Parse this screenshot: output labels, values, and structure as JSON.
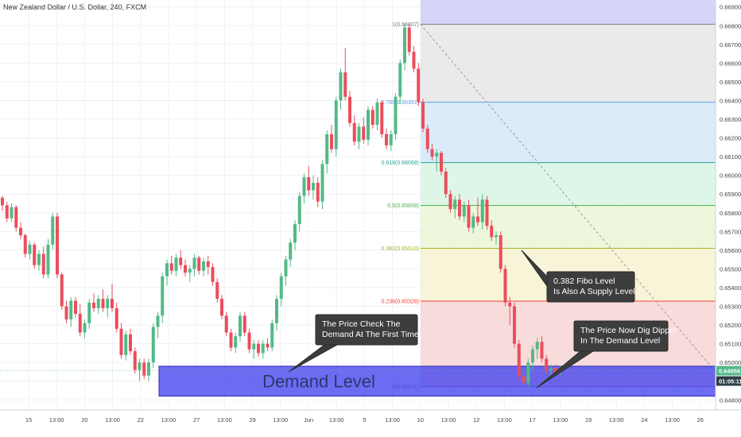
{
  "symbol_title": "New Zealand Dollar / U.S. Dollar, 240, FXCM",
  "colors": {
    "up": "#53b987",
    "down": "#eb4d5c",
    "grid": "#eef1f5",
    "demand_zone": "#4343f0",
    "fib_band_top": "#d3d3f7",
    "fib_band_grey": "#e8e8e8",
    "fib_band_blue": "#d6e9f8",
    "fib_band_green": "#d9f5e5",
    "fib_band_lime": "#eaf6d8",
    "fib_band_yellow": "#f7f3d3",
    "fib_band_red": "#f7d7d7",
    "current_price_tag": "#53b987",
    "countdown_tag": "#2f3d46"
  },
  "chart_data": {
    "type": "candlestick",
    "timeframe": "240",
    "x_ticks": [
      "15",
      "13:00",
      "20",
      "13:00",
      "22",
      "13:00",
      "27",
      "13:00",
      "29",
      "13:00",
      "Jun",
      "13:00",
      "5",
      "13:00",
      "10",
      "13:00",
      "12",
      "13:00",
      "17",
      "13:00",
      "19",
      "13:00",
      "24",
      "13:00",
      "26"
    ],
    "y_ticks": [
      "0.66900",
      "0.66800",
      "0.66700",
      "0.66600",
      "0.66500",
      "0.66400",
      "0.66300",
      "0.66200",
      "0.66100",
      "0.66000",
      "0.65900",
      "0.65800",
      "0.65700",
      "0.65600",
      "0.65500",
      "0.65400",
      "0.65300",
      "0.65200",
      "0.65100",
      "0.65000",
      "0.64900",
      "0.64800"
    ],
    "ylim": [
      0.6478,
      0.6692
    ],
    "current_price": "0.64956",
    "countdown": "01:05:11",
    "fib_levels": [
      {
        "label": "1(0.66807)",
        "value": 0.66807,
        "color": "#787b86"
      },
      {
        "label": "0.786(0.66391)",
        "value": 0.66391,
        "color": "#5b9cf6"
      },
      {
        "label": "0.618(0.66068)",
        "value": 0.66068,
        "color": "#26a69a"
      },
      {
        "label": "0.5(0.65839)",
        "value": 0.65839,
        "color": "#4caf50"
      },
      {
        "label": "0.382(0.65610)",
        "value": 0.6561,
        "color": "#9cb82b"
      },
      {
        "label": "0.236(0.65328)",
        "value": 0.65328,
        "color": "#f44336"
      },
      {
        "label": "0(0.64871)",
        "value": 0.64871,
        "color": "#787b86"
      }
    ],
    "demand_zone": {
      "label": "Demand Level",
      "top": 0.6498,
      "bottom": 0.6482
    },
    "callouts": [
      {
        "lines": [
          "The Price Check The",
          "Demand At The First Time"
        ]
      },
      {
        "lines": [
          "0.382 Fibo Level",
          "Is Also A Supply Level"
        ]
      },
      {
        "lines": [
          "The Price Now Dig Dipper",
          "In The Demand Level"
        ]
      }
    ],
    "candles": [
      [
        0.6588,
        0.6589,
        0.6581,
        0.6584
      ],
      [
        0.6584,
        0.6586,
        0.6575,
        0.6577
      ],
      [
        0.6577,
        0.6585,
        0.6575,
        0.6583
      ],
      [
        0.6583,
        0.6584,
        0.657,
        0.6572
      ],
      [
        0.6572,
        0.6575,
        0.6566,
        0.6568
      ],
      [
        0.6568,
        0.6569,
        0.6556,
        0.6558
      ],
      [
        0.6558,
        0.6565,
        0.6555,
        0.6563
      ],
      [
        0.6563,
        0.6564,
        0.655,
        0.6552
      ],
      [
        0.6552,
        0.656,
        0.6549,
        0.6558
      ],
      [
        0.6558,
        0.6562,
        0.6545,
        0.6547
      ],
      [
        0.6547,
        0.6566,
        0.6545,
        0.6563
      ],
      [
        0.6563,
        0.658,
        0.656,
        0.6578
      ],
      [
        0.6578,
        0.658,
        0.6545,
        0.6547
      ],
      [
        0.6547,
        0.6548,
        0.6528,
        0.653
      ],
      [
        0.653,
        0.6533,
        0.6521,
        0.6523
      ],
      [
        0.6523,
        0.6535,
        0.6519,
        0.6533
      ],
      [
        0.6533,
        0.6535,
        0.6524,
        0.6526
      ],
      [
        0.6526,
        0.6531,
        0.6514,
        0.6516
      ],
      [
        0.6516,
        0.6523,
        0.6513,
        0.6521
      ],
      [
        0.6521,
        0.6534,
        0.6518,
        0.6532
      ],
      [
        0.6532,
        0.6537,
        0.6527,
        0.6529
      ],
      [
        0.6529,
        0.6536,
        0.6526,
        0.6534
      ],
      [
        0.6534,
        0.6539,
        0.6527,
        0.6529
      ],
      [
        0.6529,
        0.6536,
        0.6524,
        0.6534
      ],
      [
        0.6534,
        0.6542,
        0.6527,
        0.6529
      ],
      [
        0.6529,
        0.6532,
        0.6516,
        0.6518
      ],
      [
        0.6518,
        0.6521,
        0.6502,
        0.6504
      ],
      [
        0.6504,
        0.6517,
        0.6501,
        0.6515
      ],
      [
        0.6515,
        0.6518,
        0.6504,
        0.6506
      ],
      [
        0.6506,
        0.6508,
        0.6494,
        0.6496
      ],
      [
        0.6496,
        0.6502,
        0.649,
        0.65
      ],
      [
        0.65,
        0.6502,
        0.6491,
        0.6493
      ],
      [
        0.6493,
        0.6502,
        0.649,
        0.65
      ],
      [
        0.65,
        0.6521,
        0.6497,
        0.6519
      ],
      [
        0.6519,
        0.6527,
        0.6513,
        0.6525
      ],
      [
        0.6525,
        0.6548,
        0.6521,
        0.6546
      ],
      [
        0.6546,
        0.6555,
        0.6541,
        0.6553
      ],
      [
        0.6553,
        0.6557,
        0.6547,
        0.6549
      ],
      [
        0.6549,
        0.6558,
        0.6546,
        0.6556
      ],
      [
        0.6556,
        0.656,
        0.655,
        0.6552
      ],
      [
        0.6552,
        0.6555,
        0.6546,
        0.6548
      ],
      [
        0.6548,
        0.6552,
        0.6543,
        0.655
      ],
      [
        0.655,
        0.6558,
        0.6546,
        0.6556
      ],
      [
        0.6556,
        0.6557,
        0.6547,
        0.6549
      ],
      [
        0.6549,
        0.6556,
        0.6546,
        0.6554
      ],
      [
        0.6554,
        0.6557,
        0.6547,
        0.6551
      ],
      [
        0.6551,
        0.6553,
        0.6541,
        0.6543
      ],
      [
        0.6543,
        0.6545,
        0.6532,
        0.6534
      ],
      [
        0.6534,
        0.6536,
        0.6523,
        0.6525
      ],
      [
        0.6525,
        0.6527,
        0.6514,
        0.6516
      ],
      [
        0.6516,
        0.6518,
        0.6506,
        0.6508
      ],
      [
        0.6508,
        0.6516,
        0.6505,
        0.6514
      ],
      [
        0.6514,
        0.6527,
        0.6511,
        0.6525
      ],
      [
        0.6525,
        0.6527,
        0.6514,
        0.6516
      ],
      [
        0.6516,
        0.6518,
        0.6505,
        0.6507
      ],
      [
        0.6507,
        0.6512,
        0.6502,
        0.651
      ],
      [
        0.651,
        0.6512,
        0.6503,
        0.6505
      ],
      [
        0.6505,
        0.6512,
        0.6502,
        0.651
      ],
      [
        0.651,
        0.6513,
        0.6506,
        0.6508
      ],
      [
        0.6508,
        0.6523,
        0.6506,
        0.6521
      ],
      [
        0.6521,
        0.6536,
        0.6517,
        0.6534
      ],
      [
        0.6534,
        0.6548,
        0.653,
        0.6546
      ],
      [
        0.6546,
        0.6557,
        0.6541,
        0.6555
      ],
      [
        0.6555,
        0.6566,
        0.6551,
        0.6564
      ],
      [
        0.6564,
        0.6576,
        0.656,
        0.6574
      ],
      [
        0.6574,
        0.6591,
        0.657,
        0.6589
      ],
      [
        0.6589,
        0.6601,
        0.6585,
        0.6599
      ],
      [
        0.6599,
        0.6605,
        0.6589,
        0.6592
      ],
      [
        0.6592,
        0.66,
        0.6587,
        0.6596
      ],
      [
        0.6596,
        0.6599,
        0.6583,
        0.6586
      ],
      [
        0.6586,
        0.6608,
        0.6582,
        0.6606
      ],
      [
        0.6606,
        0.6624,
        0.6601,
        0.6622
      ],
      [
        0.6622,
        0.6627,
        0.6612,
        0.6614
      ],
      [
        0.6614,
        0.6642,
        0.661,
        0.664
      ],
      [
        0.664,
        0.6657,
        0.6635,
        0.6655
      ],
      [
        0.6655,
        0.6668,
        0.664,
        0.6642
      ],
      [
        0.6642,
        0.6645,
        0.6626,
        0.6628
      ],
      [
        0.6628,
        0.6632,
        0.6616,
        0.6618
      ],
      [
        0.6618,
        0.6628,
        0.6614,
        0.6626
      ],
      [
        0.6626,
        0.6631,
        0.6617,
        0.6619
      ],
      [
        0.6619,
        0.6637,
        0.6616,
        0.6635
      ],
      [
        0.6635,
        0.6637,
        0.6625,
        0.6627
      ],
      [
        0.6627,
        0.6641,
        0.6624,
        0.6639
      ],
      [
        0.6639,
        0.664,
        0.662,
        0.6622
      ],
      [
        0.6622,
        0.6625,
        0.6614,
        0.6616
      ],
      [
        0.6616,
        0.6624,
        0.6613,
        0.6622
      ],
      [
        0.6622,
        0.6644,
        0.6619,
        0.6642
      ],
      [
        0.6642,
        0.6662,
        0.6638,
        0.666
      ],
      [
        0.666,
        0.6681,
        0.6656,
        0.6679
      ],
      [
        0.6679,
        0.6681,
        0.6664,
        0.6666
      ],
      [
        0.6666,
        0.6669,
        0.6655,
        0.6657
      ],
      [
        0.6657,
        0.666,
        0.6637,
        0.6639
      ],
      [
        0.6639,
        0.6641,
        0.6623,
        0.6625
      ],
      [
        0.6625,
        0.6627,
        0.6612,
        0.6614
      ],
      [
        0.6614,
        0.6617,
        0.6608,
        0.661
      ],
      [
        0.661,
        0.6614,
        0.6602,
        0.6612
      ],
      [
        0.6612,
        0.6613,
        0.66,
        0.6602
      ],
      [
        0.6602,
        0.6604,
        0.6588,
        0.659
      ],
      [
        0.659,
        0.6592,
        0.658,
        0.6582
      ],
      [
        0.6582,
        0.6589,
        0.6577,
        0.6587
      ],
      [
        0.6587,
        0.659,
        0.6576,
        0.6578
      ],
      [
        0.6578,
        0.6586,
        0.6575,
        0.6584
      ],
      [
        0.6584,
        0.6587,
        0.657,
        0.6572
      ],
      [
        0.6572,
        0.658,
        0.6569,
        0.6578
      ],
      [
        0.6578,
        0.6588,
        0.6573,
        0.6575
      ],
      [
        0.6575,
        0.659,
        0.6571,
        0.6587
      ],
      [
        0.6587,
        0.6589,
        0.6571,
        0.6573
      ],
      [
        0.6573,
        0.6576,
        0.6565,
        0.6567
      ],
      [
        0.6567,
        0.657,
        0.6563,
        0.6568
      ],
      [
        0.6568,
        0.657,
        0.6548,
        0.655
      ],
      [
        0.655,
        0.6552,
        0.653,
        0.6532
      ],
      [
        0.6532,
        0.6535,
        0.652,
        0.653
      ],
      [
        0.653,
        0.6532,
        0.6508,
        0.651
      ],
      [
        0.651,
        0.6512,
        0.6491,
        0.6493
      ],
      [
        0.6493,
        0.6495,
        0.6487,
        0.6489
      ],
      [
        0.6489,
        0.6502,
        0.6487,
        0.65
      ],
      [
        0.65,
        0.6509,
        0.6496,
        0.6507
      ],
      [
        0.6507,
        0.6513,
        0.6502,
        0.6511
      ],
      [
        0.6511,
        0.6514,
        0.65,
        0.6502
      ],
      [
        0.6502,
        0.6504,
        0.6494,
        0.6496
      ],
      [
        0.6496,
        0.6499,
        0.6493,
        0.6497
      ],
      [
        0.6497,
        0.6499,
        0.6494,
        0.6495
      ],
      [
        0.6495,
        0.6498,
        0.6493,
        0.6496
      ]
    ]
  }
}
